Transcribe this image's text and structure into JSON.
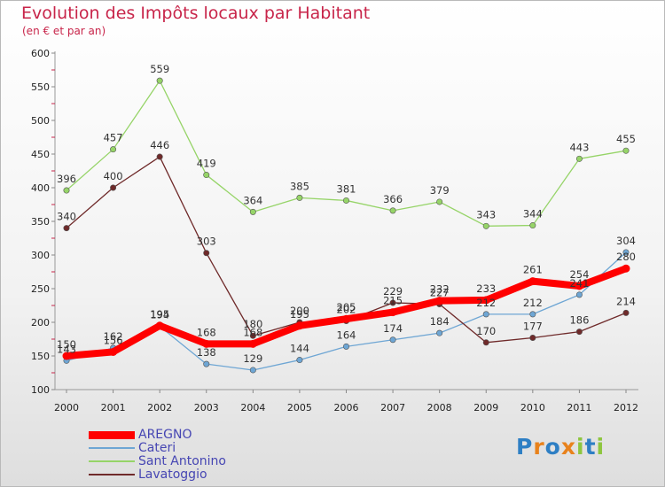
{
  "header": {
    "title": "Evolution des Impôts locaux par Habitant",
    "subtitle": "(en € et par an)"
  },
  "colors": {
    "title": "#c8254a",
    "legend_text": "#4646b3"
  },
  "chart_data": {
    "type": "line",
    "title": "Evolution des Impôts locaux par Habitant",
    "subtitle": "(en € et par an)",
    "xlabel": "",
    "ylabel": "",
    "x": [
      "2000",
      "2001",
      "2002",
      "2003",
      "2004",
      "2005",
      "2006",
      "2007",
      "2008",
      "2009",
      "2010",
      "2011",
      "2012"
    ],
    "ylim": [
      100,
      600
    ],
    "yticks": [
      100,
      150,
      200,
      250,
      300,
      350,
      400,
      450,
      500,
      550,
      600
    ],
    "grid": false,
    "legend_position": "bottom-left",
    "series": [
      {
        "name": "AREGNO",
        "color": "#ff0000",
        "highlight": true,
        "values": [
          150,
          156,
          195,
          168,
          168,
          195,
          205,
          215,
          232,
          233,
          261,
          254,
          280
        ]
      },
      {
        "name": "Cateri",
        "color": "#6ea6d4",
        "values": [
          143,
          162,
          194,
          138,
          129,
          144,
          164,
          174,
          184,
          212,
          212,
          241,
          304
        ]
      },
      {
        "name": "Sant Antonino",
        "color": "#96d468",
        "values": [
          396,
          457,
          559,
          419,
          364,
          385,
          381,
          366,
          379,
          343,
          344,
          443,
          455
        ]
      },
      {
        "name": "Lavatoggio",
        "color": "#6f2a2a",
        "values": [
          340,
          400,
          446,
          303,
          180,
          200,
          202,
          229,
          227,
          170,
          177,
          186,
          214
        ]
      }
    ]
  },
  "logo": {
    "text": "Proxiti",
    "letters": [
      {
        "ch": "P",
        "color": "#2e7fc4"
      },
      {
        "ch": "r",
        "color": "#e8821c"
      },
      {
        "ch": "o",
        "color": "#2e7fc4"
      },
      {
        "ch": "x",
        "color": "#e8821c"
      },
      {
        "ch": "i",
        "color": "#8ec63f"
      },
      {
        "ch": "t",
        "color": "#2e7fc4"
      },
      {
        "ch": "i",
        "color": "#8ec63f"
      }
    ]
  }
}
